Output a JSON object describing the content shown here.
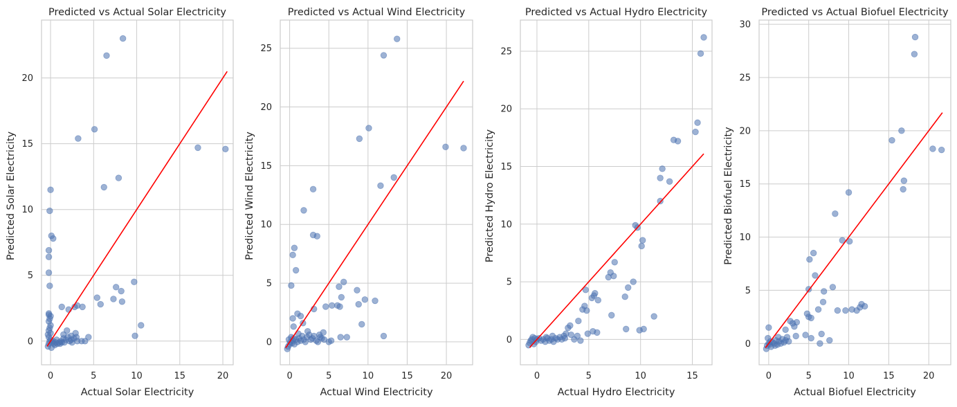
{
  "colors": {
    "points": "#4c72b0",
    "reference_line": "#ff0000",
    "grid": "#cccccc",
    "spine": "#cccccc"
  },
  "chart_data": [
    {
      "type": "scatter",
      "title": "Predicted vs Actual Solar Electricity",
      "xlabel": "Actual Solar Electricity",
      "ylabel": "Predicted Solar Electricity",
      "xlim": [
        -1.05,
        21.2
      ],
      "ylim": [
        -1.8,
        24.4
      ],
      "xticks": [
        0,
        5,
        10,
        15,
        20
      ],
      "yticks": [
        0,
        5,
        10,
        15,
        20
      ],
      "reference_line": [
        [
          -0.4,
          -0.4
        ],
        [
          20.5,
          20.5
        ]
      ],
      "grid": true,
      "points": [
        [
          -0.3,
          -0.4
        ],
        [
          -0.2,
          -0.2
        ],
        [
          -0.1,
          0
        ],
        [
          0,
          0.1
        ],
        [
          -0.2,
          0.3
        ],
        [
          0.1,
          -0.5
        ],
        [
          0.2,
          -0.1
        ],
        [
          0.3,
          0
        ],
        [
          -0.3,
          0.5
        ],
        [
          0,
          0.6
        ],
        [
          0.4,
          -0.2
        ],
        [
          0.5,
          -0.3
        ],
        [
          0.6,
          -0.1
        ],
        [
          0.8,
          -0.2
        ],
        [
          1.0,
          -0.1
        ],
        [
          1.2,
          0
        ],
        [
          1.3,
          -0.1
        ],
        [
          1.5,
          0.2
        ],
        [
          1.6,
          -0.1
        ],
        [
          1.8,
          0.1
        ],
        [
          2.0,
          0.3
        ],
        [
          2.2,
          0
        ],
        [
          2.4,
          0.1
        ],
        [
          2.5,
          -0.1
        ],
        [
          2.7,
          0.2
        ],
        [
          2.9,
          0.6
        ],
        [
          3.1,
          0
        ],
        [
          -0.2,
          0.8
        ],
        [
          -0.1,
          1.0
        ],
        [
          0,
          1.2
        ],
        [
          -0.2,
          1.5
        ],
        [
          -0.1,
          1.7
        ],
        [
          -0.2,
          2.0
        ],
        [
          0,
          1.9
        ],
        [
          -0.2,
          2.1
        ],
        [
          -0.1,
          4.2
        ],
        [
          -0.2,
          5.2
        ],
        [
          -0.2,
          6.4
        ],
        [
          -0.2,
          6.9
        ],
        [
          -0.1,
          9.9
        ],
        [
          0,
          11.5
        ],
        [
          0.1,
          8.0
        ],
        [
          0.3,
          7.8
        ],
        [
          1.3,
          2.6
        ],
        [
          2.1,
          2.4
        ],
        [
          2.8,
          2.6
        ],
        [
          3.1,
          2.7
        ],
        [
          3.7,
          2.6
        ],
        [
          3.6,
          0
        ],
        [
          3.2,
          15.4
        ],
        [
          5.1,
          16.1
        ],
        [
          6.5,
          21.7
        ],
        [
          8.4,
          23.0
        ],
        [
          6.2,
          11.7
        ],
        [
          7.9,
          12.4
        ],
        [
          5.4,
          3.3
        ],
        [
          5.8,
          2.8
        ],
        [
          7.3,
          3.2
        ],
        [
          7.6,
          4.1
        ],
        [
          8.2,
          3.8
        ],
        [
          8.3,
          3.0
        ],
        [
          9.7,
          4.5
        ],
        [
          9.8,
          0.4
        ],
        [
          10.5,
          1.2
        ],
        [
          4.0,
          0
        ],
        [
          4.4,
          0.3
        ],
        [
          17.1,
          14.7
        ],
        [
          20.3,
          14.6
        ],
        [
          1.5,
          0.5
        ],
        [
          2.4,
          0.4
        ],
        [
          3.0,
          0.3
        ],
        [
          1.9,
          0.8
        ],
        [
          0.7,
          0.1
        ],
        [
          1.1,
          -0.2
        ]
      ]
    },
    {
      "type": "scatter",
      "title": "Predicted vs Actual Wind Electricity",
      "xlabel": "Actual Wind Electricity",
      "ylabel": "Predicted Wind Electricity",
      "xlim": [
        -1.2,
        23.35
      ],
      "ylim": [
        -1.95,
        27.4
      ],
      "xticks": [
        0,
        5,
        10,
        15,
        20
      ],
      "yticks": [
        0,
        5,
        10,
        15,
        20,
        25
      ],
      "reference_line": [
        [
          -0.5,
          -0.5
        ],
        [
          22.2,
          22.2
        ]
      ],
      "grid": true,
      "points": [
        [
          -0.3,
          -0.6
        ],
        [
          -0.2,
          -0.4
        ],
        [
          0,
          -0.2
        ],
        [
          0.1,
          0
        ],
        [
          -0.1,
          0.2
        ],
        [
          0.2,
          0.4
        ],
        [
          0.3,
          -0.1
        ],
        [
          0.4,
          0.1
        ],
        [
          0.5,
          0.3
        ],
        [
          0.6,
          -0.2
        ],
        [
          0.8,
          0.2
        ],
        [
          1.0,
          0
        ],
        [
          1.2,
          0.3
        ],
        [
          1.4,
          0.1
        ],
        [
          1.6,
          0.5
        ],
        [
          1.8,
          0.2
        ],
        [
          2.0,
          0
        ],
        [
          2.2,
          0.4
        ],
        [
          2.5,
          0.6
        ],
        [
          2.7,
          0.2
        ],
        [
          2.9,
          0.3
        ],
        [
          3.1,
          0.5
        ],
        [
          3.4,
          0.1
        ],
        [
          3.6,
          0
        ],
        [
          3.9,
          0.4
        ],
        [
          4.1,
          0.3
        ],
        [
          4.4,
          0.2
        ],
        [
          5.0,
          0
        ],
        [
          5.3,
          0.1
        ],
        [
          0.2,
          4.8
        ],
        [
          0.4,
          7.4
        ],
        [
          0.6,
          8.0
        ],
        [
          0.8,
          6.1
        ],
        [
          0.4,
          2.0
        ],
        [
          0.5,
          1.3
        ],
        [
          1.0,
          2.4
        ],
        [
          1.4,
          2.2
        ],
        [
          1.7,
          1.6
        ],
        [
          1.8,
          11.2
        ],
        [
          3.0,
          13.0
        ],
        [
          3.0,
          9.1
        ],
        [
          3.5,
          9.0
        ],
        [
          3.1,
          2.8
        ],
        [
          4.6,
          3.0
        ],
        [
          5.4,
          3.1
        ],
        [
          6.1,
          3.1
        ],
        [
          6.4,
          3.0
        ],
        [
          6.3,
          4.7
        ],
        [
          6.6,
          3.8
        ],
        [
          6.9,
          5.1
        ],
        [
          6.5,
          0.4
        ],
        [
          7.3,
          0.4
        ],
        [
          8.6,
          4.4
        ],
        [
          8.8,
          3.2
        ],
        [
          9.6,
          3.6
        ],
        [
          9.2,
          1.5
        ],
        [
          8.9,
          17.3
        ],
        [
          10.1,
          18.2
        ],
        [
          10.9,
          3.5
        ],
        [
          11.6,
          13.3
        ],
        [
          12.0,
          0.5
        ],
        [
          12.0,
          24.4
        ],
        [
          13.3,
          14.0
        ],
        [
          13.7,
          25.8
        ],
        [
          19.9,
          16.6
        ],
        [
          22.2,
          16.5
        ],
        [
          2.3,
          0.9
        ],
        [
          1.1,
          0.7
        ],
        [
          4.3,
          0.8
        ],
        [
          3.8,
          0.6
        ]
      ]
    },
    {
      "type": "scatter",
      "title": "Predicted vs Actual Hydro Electricity",
      "xlabel": "Actual Hydro Electricity",
      "ylabel": "Predicted Hydro Electricity",
      "xlim": [
        -1.6,
        16.9
      ],
      "ylim": [
        -2.2,
        27.7
      ],
      "xticks": [
        0,
        5,
        10,
        15
      ],
      "yticks": [
        0,
        5,
        10,
        15,
        20,
        25
      ],
      "reference_line": [
        [
          -0.7,
          -0.7
        ],
        [
          16.1,
          16.1
        ]
      ],
      "grid": true,
      "points": [
        [
          -0.8,
          -0.5
        ],
        [
          -0.7,
          -0.3
        ],
        [
          -0.6,
          -0.1
        ],
        [
          -0.5,
          0
        ],
        [
          -0.4,
          0.2
        ],
        [
          -0.3,
          -0.4
        ],
        [
          -0.2,
          0.1
        ],
        [
          -0.1,
          -0.2
        ],
        [
          0,
          0
        ],
        [
          0.2,
          0.1
        ],
        [
          0.4,
          -0.1
        ],
        [
          0.6,
          0
        ],
        [
          0.8,
          -0.2
        ],
        [
          1.0,
          0.1
        ],
        [
          1.2,
          -0.1
        ],
        [
          1.4,
          0
        ],
        [
          1.6,
          -0.2
        ],
        [
          1.8,
          0.1
        ],
        [
          2.0,
          0
        ],
        [
          2.2,
          0.2
        ],
        [
          2.4,
          0
        ],
        [
          2.6,
          0.3
        ],
        [
          2.8,
          0.5
        ],
        [
          3.0,
          1.0
        ],
        [
          3.2,
          1.2
        ],
        [
          3.3,
          0.4
        ],
        [
          3.6,
          0
        ],
        [
          3.9,
          0.3
        ],
        [
          4.2,
          -0.1
        ],
        [
          4.0,
          1.6
        ],
        [
          4.4,
          2.6
        ],
        [
          4.6,
          2.9
        ],
        [
          4.8,
          2.5
        ],
        [
          4.7,
          4.3
        ],
        [
          5.3,
          3.6
        ],
        [
          5.5,
          3.8
        ],
        [
          5.6,
          4.0
        ],
        [
          5.9,
          3.4
        ],
        [
          4.9,
          0.5
        ],
        [
          5.4,
          0.7
        ],
        [
          5.8,
          0.6
        ],
        [
          6.9,
          5.4
        ],
        [
          7.1,
          5.8
        ],
        [
          7.5,
          6.7
        ],
        [
          7.4,
          5.5
        ],
        [
          7.2,
          2.1
        ],
        [
          8.5,
          3.7
        ],
        [
          8.8,
          4.5
        ],
        [
          8.6,
          0.9
        ],
        [
          9.3,
          5.0
        ],
        [
          9.5,
          9.9
        ],
        [
          9.7,
          9.7
        ],
        [
          9.9,
          0.8
        ],
        [
          10.1,
          8.1
        ],
        [
          10.2,
          8.6
        ],
        [
          10.3,
          0.9
        ],
        [
          11.3,
          2.0
        ],
        [
          11.9,
          14.0
        ],
        [
          12.1,
          14.8
        ],
        [
          12.8,
          13.7
        ],
        [
          11.9,
          12.0
        ],
        [
          13.2,
          17.3
        ],
        [
          13.6,
          17.2
        ],
        [
          15.3,
          18.0
        ],
        [
          15.5,
          18.8
        ],
        [
          15.8,
          24.8
        ],
        [
          16.1,
          26.2
        ],
        [
          1.5,
          0.3
        ],
        [
          2.7,
          0.1
        ],
        [
          0.9,
          0.2
        ]
      ]
    },
    {
      "type": "scatter",
      "title": "Predicted vs Actual Biofuel Electricity",
      "xlabel": "Actual Biofuel Electricity",
      "ylabel": "Predicted Biofuel Electricity",
      "xlim": [
        -1.2,
        22.75
      ],
      "ylim": [
        -2.0,
        30.4
      ],
      "xticks": [
        0,
        5,
        10,
        15,
        20
      ],
      "yticks": [
        0,
        5,
        10,
        15,
        20,
        25,
        30
      ],
      "reference_line": [
        [
          -0.4,
          -0.4
        ],
        [
          21.7,
          21.7
        ]
      ],
      "grid": true,
      "points": [
        [
          -0.3,
          -0.5
        ],
        [
          -0.2,
          -0.2
        ],
        [
          0,
          0
        ],
        [
          0.1,
          -0.1
        ],
        [
          0.2,
          0.2
        ],
        [
          -0.1,
          0.5
        ],
        [
          0.3,
          -0.3
        ],
        [
          0.5,
          0.1
        ],
        [
          0.7,
          0
        ],
        [
          0.9,
          0.3
        ],
        [
          1.1,
          -0.1
        ],
        [
          1.3,
          0.2
        ],
        [
          1.5,
          0
        ],
        [
          1.7,
          0.4
        ],
        [
          1.9,
          0.1
        ],
        [
          2.1,
          0.3
        ],
        [
          2.3,
          0.6
        ],
        [
          2.5,
          0.2
        ],
        [
          0,
          1.5
        ],
        [
          2.1,
          1.3
        ],
        [
          2.7,
          2.1
        ],
        [
          3.0,
          1.9
        ],
        [
          3.2,
          1.6
        ],
        [
          3.5,
          2.0
        ],
        [
          3.4,
          0.7
        ],
        [
          4.6,
          0.8
        ],
        [
          4.8,
          2.8
        ],
        [
          5.0,
          2.5
        ],
        [
          5.3,
          2.4
        ],
        [
          5.0,
          5.1
        ],
        [
          5.1,
          7.9
        ],
        [
          5.6,
          8.5
        ],
        [
          5.8,
          6.4
        ],
        [
          5.3,
          0.5
        ],
        [
          6.2,
          3.2
        ],
        [
          6.8,
          3.9
        ],
        [
          6.9,
          4.9
        ],
        [
          7.6,
          0.3
        ],
        [
          8.0,
          5.3
        ],
        [
          8.3,
          12.2
        ],
        [
          8.6,
          3.1
        ],
        [
          9.2,
          9.7
        ],
        [
          9.6,
          3.1
        ],
        [
          10.0,
          14.2
        ],
        [
          10.1,
          9.6
        ],
        [
          10.4,
          3.2
        ],
        [
          11.0,
          3.1
        ],
        [
          11.4,
          3.4
        ],
        [
          11.6,
          3.7
        ],
        [
          12.0,
          3.5
        ],
        [
          15.4,
          19.1
        ],
        [
          16.6,
          20.0
        ],
        [
          16.8,
          14.5
        ],
        [
          16.9,
          15.3
        ],
        [
          18.2,
          27.2
        ],
        [
          18.3,
          28.8
        ],
        [
          20.5,
          18.3
        ],
        [
          21.6,
          18.2
        ],
        [
          6.4,
          0
        ],
        [
          6.6,
          0.9
        ],
        [
          1.2,
          0.6
        ],
        [
          0.8,
          -0.2
        ]
      ]
    }
  ]
}
